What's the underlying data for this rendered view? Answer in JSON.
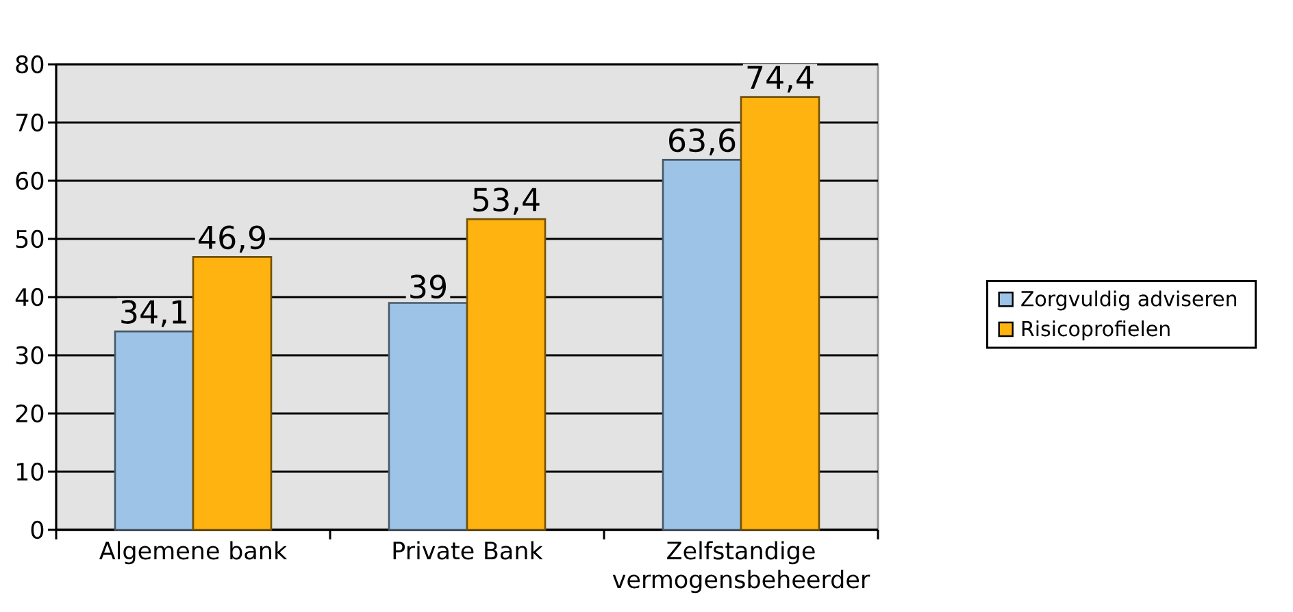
{
  "chart_data": {
    "type": "bar",
    "categories": [
      "Algemene bank",
      "Private Bank",
      "Zelfstandige vermogensbeheerder"
    ],
    "series": [
      {
        "name": "Zorgvuldig adviseren",
        "color": "#9dc3e6",
        "values": [
          34.1,
          39,
          63.6
        ],
        "value_labels": [
          "34,1",
          "39",
          "63,6"
        ]
      },
      {
        "name": "Risicoprofielen",
        "color": "#ffb310",
        "values": [
          46.9,
          53.4,
          74.4
        ],
        "value_labels": [
          "46,9",
          "53,4",
          "74,4"
        ]
      }
    ],
    "ylim": [
      0,
      80
    ],
    "yticks": [
      0,
      10,
      20,
      30,
      40,
      50,
      60,
      70,
      80
    ],
    "grid": "y",
    "legend": "right"
  }
}
